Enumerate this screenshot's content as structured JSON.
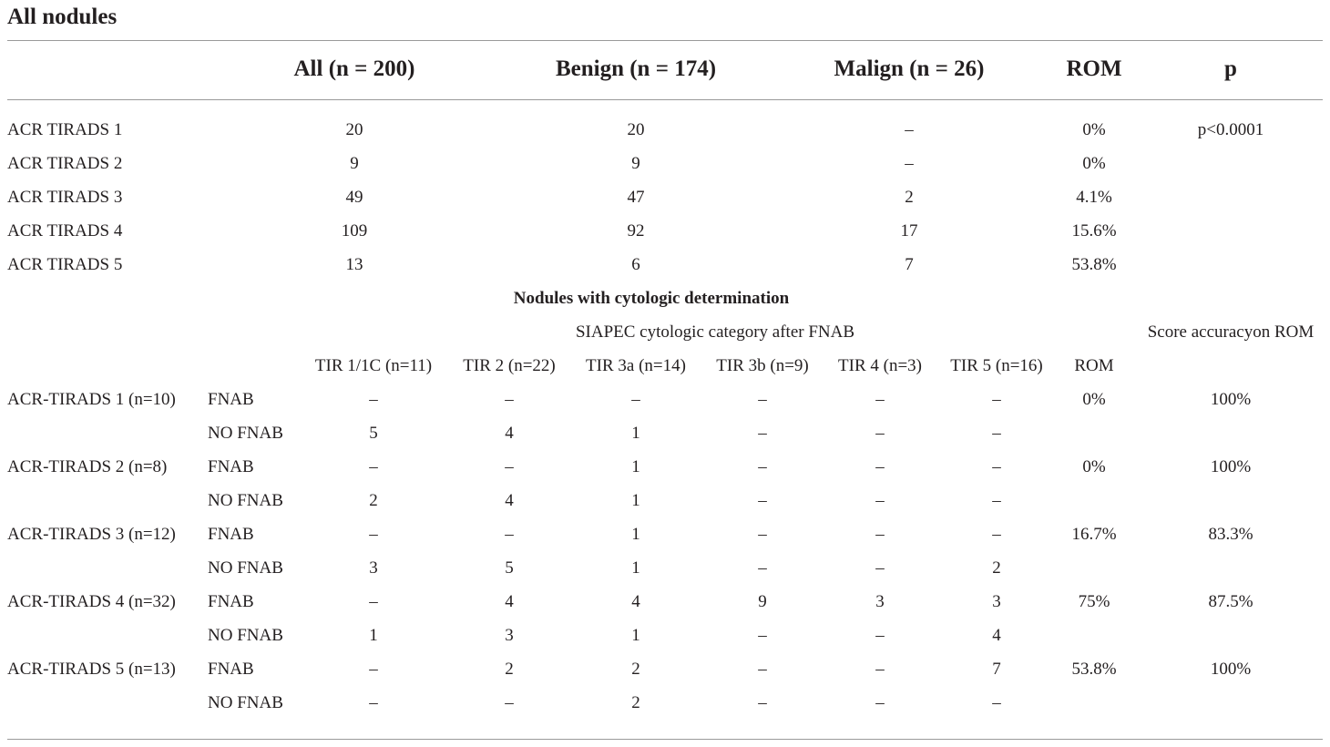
{
  "title": "All nodules",
  "top_table": {
    "headers": [
      "All (n = 200)",
      "Benign (n = 174)",
      "Malign (n = 26)",
      "ROM",
      "p"
    ],
    "rows": [
      {
        "label": "ACR TIRADS 1",
        "all": "20",
        "benign": "20",
        "malign": "–",
        "rom": "0%",
        "p": "p<0.0001"
      },
      {
        "label": "ACR TIRADS 2",
        "all": "9",
        "benign": "9",
        "malign": "–",
        "rom": "0%",
        "p": ""
      },
      {
        "label": "ACR TIRADS 3",
        "all": "49",
        "benign": "47",
        "malign": "2",
        "rom": "4.1%",
        "p": ""
      },
      {
        "label": "ACR TIRADS 4",
        "all": "109",
        "benign": "92",
        "malign": "17",
        "rom": "15.6%",
        "p": ""
      },
      {
        "label": "ACR TIRADS 5",
        "all": "13",
        "benign": "6",
        "malign": "7",
        "rom": "53.8%",
        "p": ""
      }
    ]
  },
  "section_title": "Nodules with cytologic determination",
  "cyto_header": "SIAPEC cytologic category after FNAB",
  "score_header": "Score accuracyon ROM",
  "cyto_columns": [
    "TIR 1/1C (n=11)",
    "TIR 2 (n=22)",
    "TIR 3a (n=14)",
    "TIR 3b (n=9)",
    "TIR 4 (n=3)",
    "TIR 5 (n=16)",
    "ROM"
  ],
  "cyto_rows": [
    {
      "group": "ACR-TIRADS 1 (n=10)",
      "sub": "FNAB",
      "vals": [
        "–",
        "–",
        "–",
        "–",
        "–",
        "–"
      ],
      "rom": "0%",
      "score": "100%"
    },
    {
      "group": "",
      "sub": "NO FNAB",
      "vals": [
        "5",
        "4",
        "1",
        "–",
        "–",
        "–"
      ],
      "rom": "",
      "score": ""
    },
    {
      "group": "ACR-TIRADS 2 (n=8)",
      "sub": "FNAB",
      "vals": [
        "–",
        "–",
        "1",
        "–",
        "–",
        "–"
      ],
      "rom": "0%",
      "score": "100%"
    },
    {
      "group": "",
      "sub": "NO FNAB",
      "vals": [
        "2",
        "4",
        "1",
        "–",
        "–",
        "–"
      ],
      "rom": "",
      "score": ""
    },
    {
      "group": "ACR-TIRADS 3 (n=12)",
      "sub": "FNAB",
      "vals": [
        "–",
        "–",
        "1",
        "–",
        "–",
        "–"
      ],
      "rom": "16.7%",
      "score": "83.3%"
    },
    {
      "group": "",
      "sub": "NO FNAB",
      "vals": [
        "3",
        "5",
        "1",
        "–",
        "–",
        "2"
      ],
      "rom": "",
      "score": ""
    },
    {
      "group": "ACR-TIRADS 4 (n=32)",
      "sub": "FNAB",
      "vals": [
        "–",
        "4",
        "4",
        "9",
        "3",
        "3"
      ],
      "rom": "75%",
      "score": "87.5%"
    },
    {
      "group": "",
      "sub": "NO FNAB",
      "vals": [
        "1",
        "3",
        "1",
        "–",
        "–",
        "4"
      ],
      "rom": "",
      "score": ""
    },
    {
      "group": "ACR-TIRADS 5 (n=13)",
      "sub": "FNAB",
      "vals": [
        "–",
        "2",
        "2",
        "–",
        "–",
        "7"
      ],
      "rom": "53.8%",
      "score": "100%"
    },
    {
      "group": "",
      "sub": "NO FNAB",
      "vals": [
        "–",
        "–",
        "2",
        "–",
        "–",
        "–"
      ],
      "rom": "",
      "score": ""
    }
  ]
}
